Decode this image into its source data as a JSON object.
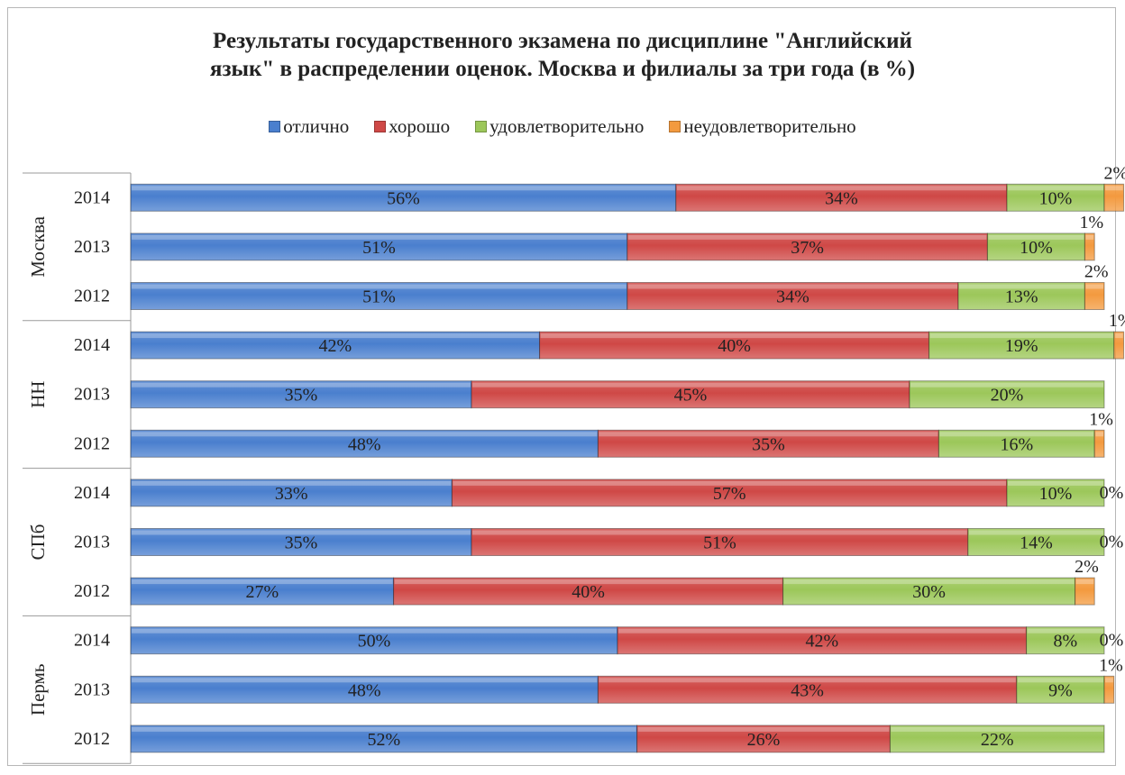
{
  "chart_data": {
    "type": "bar",
    "orientation": "horizontal",
    "stacked": "100%",
    "title_line1": "Результаты государственного экзамена по дисциплине \"Английский",
    "title_line2": "язык\" в распределении оценок. Москва и филиалы  за три года (в %)",
    "legend_position": "top",
    "series": [
      {
        "name": "отлично",
        "color": "#4a7fce"
      },
      {
        "name": "хорошо",
        "color": "#cf4846"
      },
      {
        "name": "удовлетворительно",
        "color": "#9cc75a"
      },
      {
        "name": "неудовлетворительно",
        "color": "#f39a3f"
      }
    ],
    "groups": [
      {
        "name": "Москва",
        "rows": [
          {
            "year": "2014",
            "values": [
              56,
              34,
              10,
              2
            ]
          },
          {
            "year": "2013",
            "values": [
              51,
              37,
              10,
              1
            ]
          },
          {
            "year": "2012",
            "values": [
              51,
              34,
              13,
              2
            ]
          }
        ]
      },
      {
        "name": "НН",
        "rows": [
          {
            "year": "2014",
            "values": [
              42,
              40,
              19,
              1
            ]
          },
          {
            "year": "2013",
            "values": [
              35,
              45,
              20,
              null
            ]
          },
          {
            "year": "2012",
            "values": [
              48,
              35,
              16,
              1
            ]
          }
        ]
      },
      {
        "name": "СПб",
        "rows": [
          {
            "year": "2014",
            "values": [
              33,
              57,
              10,
              0
            ]
          },
          {
            "year": "2013",
            "values": [
              35,
              51,
              14,
              0
            ]
          },
          {
            "year": "2012",
            "values": [
              27,
              40,
              30,
              2
            ]
          }
        ]
      },
      {
        "name": "Пермь",
        "rows": [
          {
            "year": "2014",
            "values": [
              50,
              42,
              8,
              0
            ]
          },
          {
            "year": "2013",
            "values": [
              48,
              43,
              9,
              1
            ]
          },
          {
            "year": "2012",
            "values": [
              52,
              26,
              22,
              null
            ]
          }
        ]
      }
    ]
  }
}
